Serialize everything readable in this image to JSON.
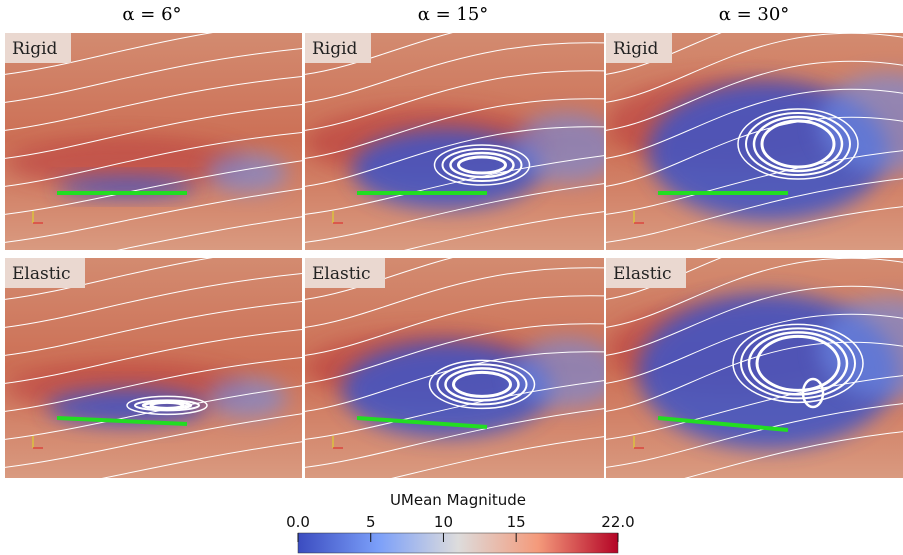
{
  "columns": [
    "α = 6°",
    "α = 15°",
    "α = 30°"
  ],
  "rows": [
    "Rigid",
    "Elastic"
  ],
  "colorbar": {
    "title": "UMean Magnitude",
    "lim": [
      0,
      22
    ],
    "ticks": [
      {
        "value": 0,
        "label": "0.0"
      },
      5,
      10,
      15,
      {
        "value": 22,
        "label": "22.0"
      }
    ]
  }
}
